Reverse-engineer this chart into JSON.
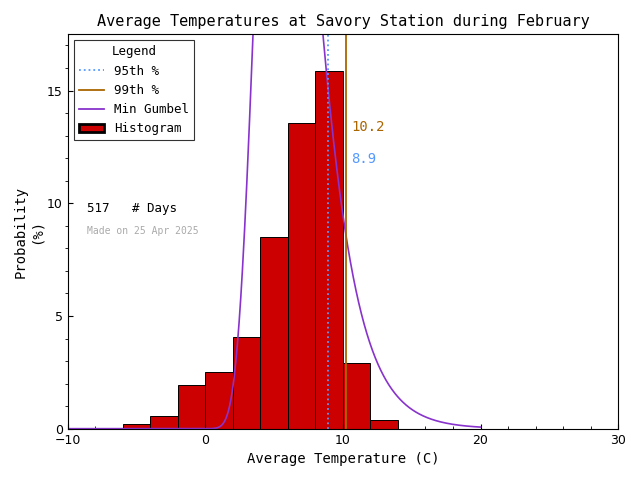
{
  "title": "Average Temperatures at Savory Station during February",
  "xlabel": "Average Temperature (C)",
  "ylabel": "Probability\n(%)",
  "xlim": [
    -10,
    30
  ],
  "ylim": [
    0,
    17.5
  ],
  "xticks": [
    -10,
    0,
    10,
    20,
    30
  ],
  "yticks": [
    0,
    5,
    10,
    15
  ],
  "bar_edges": [
    -4,
    -2,
    0,
    2,
    4,
    6,
    8,
    10,
    12
  ],
  "bar_heights": [
    0.58,
    1.93,
    2.51,
    4.06,
    8.51,
    13.54,
    15.86,
    2.9,
    0.97
  ],
  "bar_color": "#cc0000",
  "bar_edge_color": "#000000",
  "gumbel_mu": 5.5,
  "gumbel_beta": 2.0,
  "percentile_95": 8.9,
  "percentile_99": 10.2,
  "n_days": 517,
  "made_on": "Made on 25 Apr 2025",
  "p95_color": "#5599ff",
  "p99_color": "#aa6600",
  "gumbel_color": "#8833cc",
  "bg_color": "#ffffff",
  "title_fontsize": 11,
  "axis_fontsize": 10,
  "tick_fontsize": 9,
  "legend_fontsize": 9
}
